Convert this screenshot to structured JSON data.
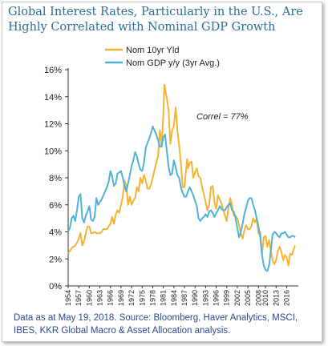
{
  "header": {
    "title": "Global Interest Rates, Particularly in the U.S., Are Highly Correlated with Nominal GDP Growth"
  },
  "footer": {
    "source": "Data as at May 19, 2018. Source: Bloomberg, Haver Analytics, MSCI, IBES, KKR Global Macro & Asset Allocation analysis."
  },
  "colors": {
    "nom_10yr": "#f5b335",
    "nom_gdp": "#4fb3d9",
    "title": "#2b6f95",
    "source": "#2c4a8c"
  },
  "chart_data": {
    "type": "line",
    "title": "",
    "xlabel": "",
    "ylabel": "",
    "xlim": [
      1954,
      2018.4
    ],
    "ylim": [
      0,
      16
    ],
    "y_ticks": [
      "0%",
      "2%",
      "4%",
      "6%",
      "8%",
      "10%",
      "12%",
      "14%",
      "16%"
    ],
    "x_ticks": [
      "1954",
      "1957",
      "1960",
      "1963",
      "1966",
      "1969",
      "1972",
      "1975",
      "1978",
      "1981",
      "1984",
      "1987",
      "1990",
      "1993",
      "1996",
      "1999",
      "2002",
      "2005",
      "2008",
      "2010",
      "2013",
      "2016"
    ],
    "grid": false,
    "legend_position": "top-center",
    "annotation": "Correl = 77%",
    "series": [
      {
        "name": "Nom 10yr Yld",
        "color": "#f5b335",
        "points": [
          [
            1954.0,
            2.4
          ],
          [
            1954.5,
            2.6
          ],
          [
            1955.0,
            2.8
          ],
          [
            1955.5,
            2.9
          ],
          [
            1956.0,
            3.0
          ],
          [
            1956.5,
            3.2
          ],
          [
            1957.0,
            3.5
          ],
          [
            1957.5,
            3.9
          ],
          [
            1958.0,
            3.0
          ],
          [
            1958.5,
            3.3
          ],
          [
            1959.0,
            3.9
          ],
          [
            1959.5,
            4.4
          ],
          [
            1960.0,
            4.4
          ],
          [
            1960.5,
            3.9
          ],
          [
            1961.0,
            3.9
          ],
          [
            1961.5,
            4.0
          ],
          [
            1962.0,
            3.9
          ],
          [
            1962.5,
            3.9
          ],
          [
            1963.0,
            3.9
          ],
          [
            1963.5,
            4.0
          ],
          [
            1964.0,
            4.2
          ],
          [
            1964.5,
            4.2
          ],
          [
            1965.0,
            4.2
          ],
          [
            1965.5,
            4.4
          ],
          [
            1966.0,
            4.6
          ],
          [
            1966.5,
            5.1
          ],
          [
            1967.0,
            4.6
          ],
          [
            1967.5,
            5.3
          ],
          [
            1968.0,
            5.6
          ],
          [
            1968.5,
            5.4
          ],
          [
            1969.0,
            6.0
          ],
          [
            1969.5,
            6.6
          ],
          [
            1970.0,
            7.8
          ],
          [
            1970.5,
            7.4
          ],
          [
            1971.0,
            6.0
          ],
          [
            1971.5,
            6.6
          ],
          [
            1972.0,
            6.0
          ],
          [
            1972.5,
            6.3
          ],
          [
            1973.0,
            6.5
          ],
          [
            1973.5,
            7.3
          ],
          [
            1974.0,
            7.0
          ],
          [
            1974.5,
            8.0
          ],
          [
            1975.0,
            7.6
          ],
          [
            1975.5,
            8.2
          ],
          [
            1976.0,
            7.8
          ],
          [
            1976.5,
            7.2
          ],
          [
            1977.0,
            7.2
          ],
          [
            1977.5,
            7.5
          ],
          [
            1978.0,
            8.0
          ],
          [
            1978.5,
            8.6
          ],
          [
            1979.0,
            9.1
          ],
          [
            1979.5,
            9.6
          ],
          [
            1980.0,
            11.5
          ],
          [
            1980.5,
            10.4
          ],
          [
            1981.0,
            12.6
          ],
          [
            1981.3,
            14.9
          ],
          [
            1981.7,
            14.3
          ],
          [
            1982.0,
            13.9
          ],
          [
            1982.5,
            13.0
          ],
          [
            1983.0,
            10.5
          ],
          [
            1983.5,
            11.5
          ],
          [
            1984.0,
            11.8
          ],
          [
            1984.5,
            13.2
          ],
          [
            1985.0,
            11.5
          ],
          [
            1985.5,
            10.4
          ],
          [
            1986.0,
            9.0
          ],
          [
            1986.5,
            7.3
          ],
          [
            1987.0,
            7.3
          ],
          [
            1987.5,
            8.7
          ],
          [
            1987.8,
            9.4
          ],
          [
            1988.0,
            8.7
          ],
          [
            1988.5,
            9.1
          ],
          [
            1989.0,
            9.2
          ],
          [
            1989.5,
            8.0
          ],
          [
            1990.0,
            8.4
          ],
          [
            1990.5,
            8.7
          ],
          [
            1991.0,
            8.1
          ],
          [
            1991.5,
            8.0
          ],
          [
            1992.0,
            7.3
          ],
          [
            1992.5,
            6.8
          ],
          [
            1993.0,
            6.2
          ],
          [
            1993.5,
            5.6
          ],
          [
            1994.0,
            6.0
          ],
          [
            1994.5,
            7.3
          ],
          [
            1995.0,
            7.4
          ],
          [
            1995.5,
            6.2
          ],
          [
            1996.0,
            5.7
          ],
          [
            1996.5,
            6.7
          ],
          [
            1997.0,
            6.4
          ],
          [
            1997.5,
            6.1
          ],
          [
            1998.0,
            5.6
          ],
          [
            1998.5,
            5.2
          ],
          [
            1999.0,
            4.8
          ],
          [
            1999.5,
            5.8
          ],
          [
            2000.0,
            6.5
          ],
          [
            2000.5,
            6.0
          ],
          [
            2001.0,
            5.2
          ],
          [
            2001.5,
            5.2
          ],
          [
            2002.0,
            5.0
          ],
          [
            2002.5,
            4.5
          ],
          [
            2003.0,
            3.9
          ],
          [
            2003.5,
            3.5
          ],
          [
            2004.0,
            4.1
          ],
          [
            2004.5,
            4.5
          ],
          [
            2005.0,
            4.2
          ],
          [
            2005.5,
            4.2
          ],
          [
            2006.0,
            4.4
          ],
          [
            2006.5,
            5.0
          ],
          [
            2007.0,
            4.7
          ],
          [
            2007.5,
            5.0
          ],
          [
            2008.0,
            3.9
          ],
          [
            2008.5,
            4.0
          ],
          [
            2009.0,
            2.3
          ],
          [
            2009.5,
            3.6
          ],
          [
            2010.0,
            3.7
          ],
          [
            2010.5,
            2.9
          ],
          [
            2011.0,
            3.4
          ],
          [
            2011.5,
            2.6
          ],
          [
            2012.0,
            1.9
          ],
          [
            2012.5,
            1.6
          ],
          [
            2013.0,
            1.9
          ],
          [
            2013.5,
            2.6
          ],
          [
            2014.0,
            2.9
          ],
          [
            2014.5,
            2.5
          ],
          [
            2015.0,
            1.9
          ],
          [
            2015.5,
            2.3
          ],
          [
            2016.0,
            2.1
          ],
          [
            2016.5,
            1.5
          ],
          [
            2017.0,
            2.4
          ],
          [
            2017.5,
            2.3
          ],
          [
            2018.0,
            2.7
          ],
          [
            2018.4,
            3.0
          ]
        ]
      },
      {
        "name": "Nom GDP y/y (3yr Avg.)",
        "color": "#4fb3d9",
        "points": [
          [
            1954.0,
            4.0
          ],
          [
            1954.5,
            4.3
          ],
          [
            1955.0,
            5.0
          ],
          [
            1955.5,
            5.2
          ],
          [
            1956.0,
            4.8
          ],
          [
            1956.5,
            5.6
          ],
          [
            1957.0,
            6.6
          ],
          [
            1957.5,
            6.8
          ],
          [
            1958.0,
            5.0
          ],
          [
            1958.5,
            4.7
          ],
          [
            1959.0,
            5.2
          ],
          [
            1959.5,
            5.5
          ],
          [
            1960.0,
            5.9
          ],
          [
            1960.5,
            4.9
          ],
          [
            1961.0,
            4.8
          ],
          [
            1961.5,
            5.1
          ],
          [
            1962.0,
            6.5
          ],
          [
            1962.5,
            6.0
          ],
          [
            1963.0,
            6.2
          ],
          [
            1963.5,
            6.4
          ],
          [
            1964.0,
            6.7
          ],
          [
            1964.5,
            7.0
          ],
          [
            1965.0,
            7.3
          ],
          [
            1965.5,
            7.7
          ],
          [
            1966.0,
            8.5
          ],
          [
            1966.5,
            8.1
          ],
          [
            1967.0,
            7.4
          ],
          [
            1967.5,
            7.6
          ],
          [
            1968.0,
            8.3
          ],
          [
            1968.5,
            8.4
          ],
          [
            1969.0,
            8.5
          ],
          [
            1969.5,
            8.0
          ],
          [
            1970.0,
            7.4
          ],
          [
            1970.5,
            7.0
          ],
          [
            1971.0,
            7.6
          ],
          [
            1971.5,
            8.2
          ],
          [
            1972.0,
            8.9
          ],
          [
            1972.5,
            9.3
          ],
          [
            1973.0,
            9.9
          ],
          [
            1973.5,
            9.6
          ],
          [
            1974.0,
            9.0
          ],
          [
            1974.5,
            8.6
          ],
          [
            1975.0,
            8.5
          ],
          [
            1975.5,
            9.1
          ],
          [
            1976.0,
            10.2
          ],
          [
            1976.5,
            10.6
          ],
          [
            1977.0,
            10.9
          ],
          [
            1977.5,
            11.3
          ],
          [
            1978.0,
            11.8
          ],
          [
            1978.5,
            11.5
          ],
          [
            1979.0,
            11.2
          ],
          [
            1979.5,
            10.8
          ],
          [
            1980.0,
            10.3
          ],
          [
            1980.5,
            10.3
          ],
          [
            1981.0,
            11.0
          ],
          [
            1981.5,
            11.2
          ],
          [
            1982.0,
            10.0
          ],
          [
            1982.5,
            8.8
          ],
          [
            1983.0,
            8.2
          ],
          [
            1983.5,
            8.3
          ],
          [
            1984.0,
            9.3
          ],
          [
            1984.5,
            8.8
          ],
          [
            1985.0,
            8.2
          ],
          [
            1985.5,
            8.0
          ],
          [
            1986.0,
            7.3
          ],
          [
            1986.5,
            6.9
          ],
          [
            1987.0,
            6.6
          ],
          [
            1987.5,
            6.6
          ],
          [
            1988.0,
            7.0
          ],
          [
            1988.5,
            7.3
          ],
          [
            1989.0,
            7.0
          ],
          [
            1989.5,
            6.7
          ],
          [
            1990.0,
            6.3
          ],
          [
            1990.5,
            5.9
          ],
          [
            1991.0,
            5.0
          ],
          [
            1991.5,
            4.8
          ],
          [
            1992.0,
            5.0
          ],
          [
            1992.5,
            5.1
          ],
          [
            1993.0,
            5.3
          ],
          [
            1993.5,
            5.1
          ],
          [
            1994.0,
            5.5
          ],
          [
            1994.5,
            5.6
          ],
          [
            1995.0,
            5.4
          ],
          [
            1995.5,
            5.1
          ],
          [
            1996.0,
            5.4
          ],
          [
            1996.5,
            5.6
          ],
          [
            1997.0,
            5.9
          ],
          [
            1997.5,
            5.7
          ],
          [
            1998.0,
            5.6
          ],
          [
            1998.5,
            5.6
          ],
          [
            1999.0,
            5.8
          ],
          [
            1999.5,
            6.0
          ],
          [
            2000.0,
            6.1
          ],
          [
            2000.5,
            5.6
          ],
          [
            2001.0,
            5.5
          ],
          [
            2001.5,
            5.0
          ],
          [
            2002.0,
            4.3
          ],
          [
            2002.5,
            3.6
          ],
          [
            2003.0,
            4.0
          ],
          [
            2003.5,
            4.6
          ],
          [
            2004.0,
            5.3
          ],
          [
            2004.5,
            5.8
          ],
          [
            2005.0,
            6.3
          ],
          [
            2005.5,
            6.5
          ],
          [
            2006.0,
            6.5
          ],
          [
            2006.5,
            6.0
          ],
          [
            2007.0,
            5.6
          ],
          [
            2007.5,
            5.0
          ],
          [
            2008.0,
            4.4
          ],
          [
            2008.5,
            3.6
          ],
          [
            2009.0,
            2.3
          ],
          [
            2009.5,
            1.5
          ],
          [
            2010.0,
            1.2
          ],
          [
            2010.5,
            1.1
          ],
          [
            2011.0,
            1.5
          ],
          [
            2011.5,
            2.6
          ],
          [
            2012.0,
            3.8
          ],
          [
            2012.5,
            4.0
          ],
          [
            2013.0,
            3.9
          ],
          [
            2013.5,
            3.7
          ],
          [
            2014.0,
            3.6
          ],
          [
            2014.5,
            3.9
          ],
          [
            2015.0,
            3.9
          ],
          [
            2015.5,
            4.0
          ],
          [
            2016.0,
            3.8
          ],
          [
            2016.5,
            3.6
          ],
          [
            2017.0,
            3.6
          ],
          [
            2017.5,
            3.7
          ],
          [
            2018.0,
            3.7
          ],
          [
            2018.4,
            3.6
          ]
        ]
      }
    ]
  }
}
